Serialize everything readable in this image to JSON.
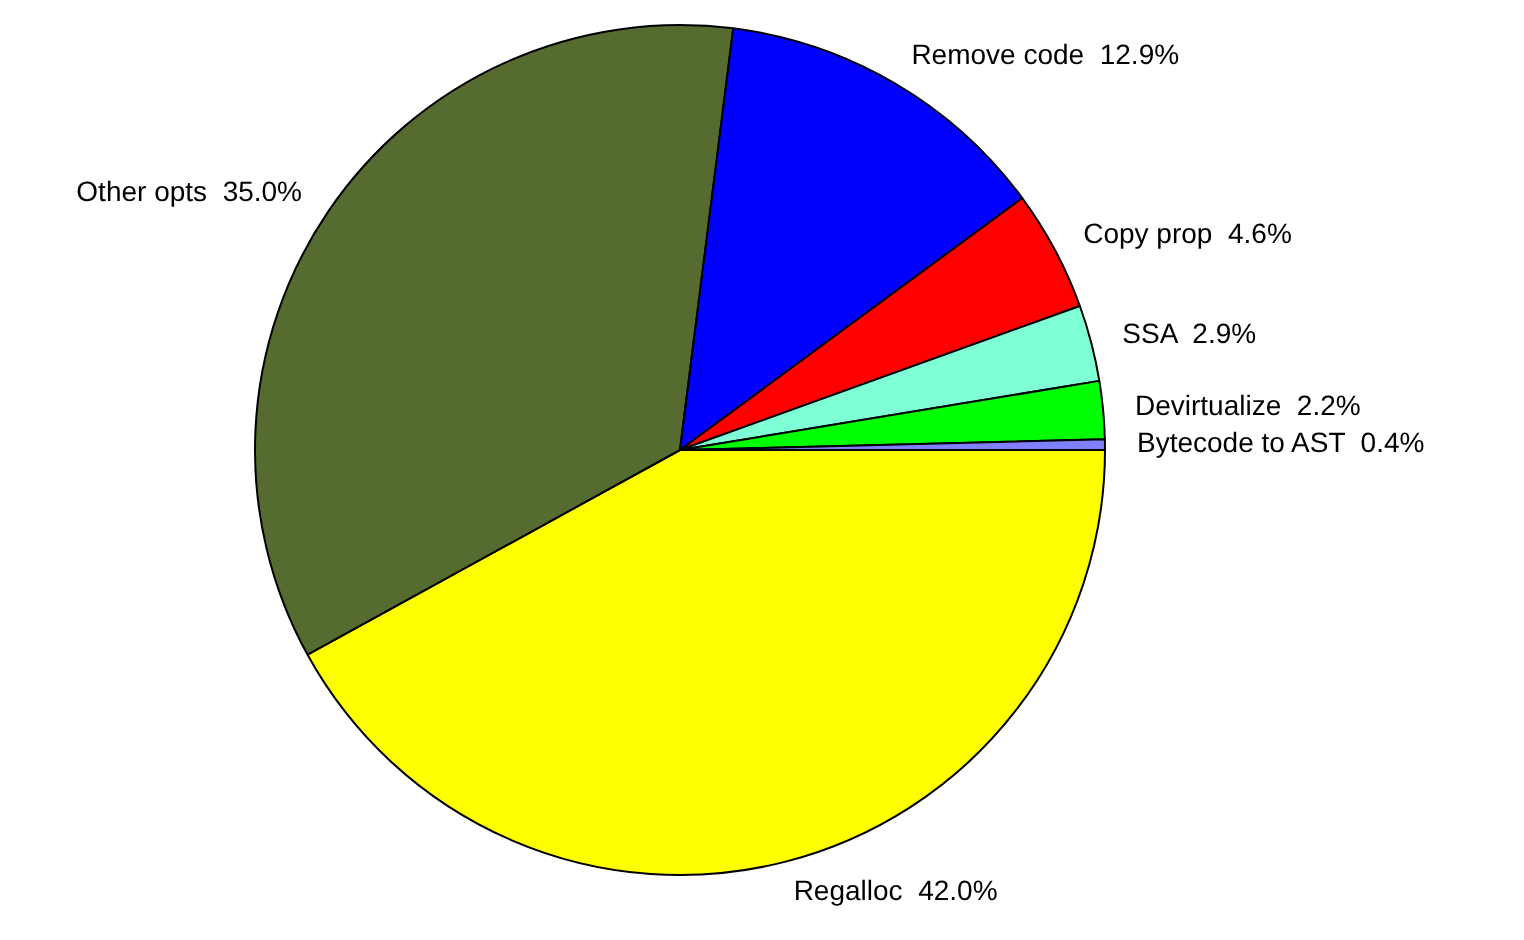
{
  "chart_data": {
    "type": "pie",
    "categories": [
      "Regalloc",
      "Other opts",
      "Remove code",
      "Copy prop",
      "SSA",
      "Devirtualize",
      "Bytecode to AST"
    ],
    "values": [
      42.0,
      35.0,
      12.9,
      4.6,
      2.9,
      2.2,
      0.4
    ],
    "value_labels": [
      "42.0%",
      "35.0%",
      "12.9%",
      "4.6%",
      "2.9%",
      "2.2%",
      "0.4%"
    ],
    "colors": [
      "#ffff00",
      "#556b2f",
      "#0000ff",
      "#ff0000",
      "#7fffd4",
      "#00ff00",
      "#8080ff"
    ],
    "legend": false
  }
}
